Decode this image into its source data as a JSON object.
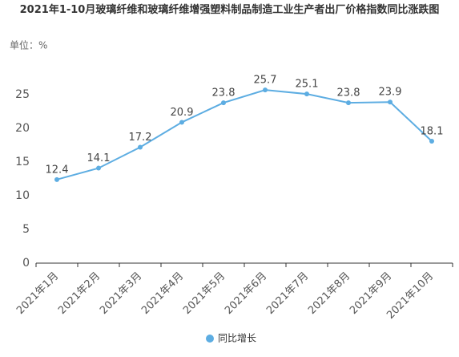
{
  "chart_data": {
    "type": "line",
    "title": "2021年1-10月玻璃纤维和玻璃纤维增强塑料制品制造工业生产者出厂价格指数同比涨跌图",
    "unit_label": "单位：%",
    "categories": [
      "2021年1月",
      "2021年2月",
      "2021年3月",
      "2021年4月",
      "2021年5月",
      "2021年6月",
      "2021年7月",
      "2021年8月",
      "2021年9月",
      "2021年10月"
    ],
    "series": [
      {
        "name": "同比增长",
        "color": "#5dade2",
        "values": [
          12.4,
          14.1,
          17.2,
          20.9,
          23.8,
          25.7,
          25.1,
          23.8,
          23.9,
          18.1
        ]
      }
    ],
    "ylim": [
      0,
      30
    ],
    "yticks": [
      0,
      5,
      10,
      15,
      20,
      25
    ],
    "grid": false,
    "legend": "bottom"
  }
}
